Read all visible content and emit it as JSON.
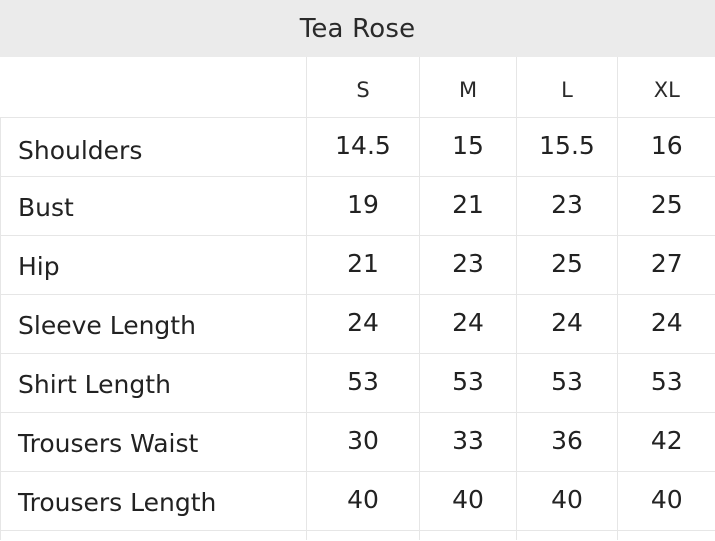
{
  "title": "Tea Rose",
  "table": {
    "corner_label": "",
    "columns": [
      "S",
      "M",
      "L",
      "XL"
    ],
    "rows": [
      {
        "label": "Shoulders",
        "values": [
          "14.5",
          "15",
          "15.5",
          "16"
        ]
      },
      {
        "label": "Bust",
        "values": [
          "19",
          "21",
          "23",
          "25"
        ]
      },
      {
        "label": "Hip",
        "values": [
          "21",
          "23",
          "25",
          "27"
        ]
      },
      {
        "label": "Sleeve Length",
        "values": [
          "24",
          "24",
          "24",
          "24"
        ]
      },
      {
        "label": "Shirt Length",
        "values": [
          "53",
          "53",
          "53",
          "53"
        ]
      },
      {
        "label": "Trousers Waist",
        "values": [
          "30",
          "33",
          "36",
          "42"
        ]
      },
      {
        "label": "Trousers Length",
        "values": [
          "40",
          "40",
          "40",
          "40"
        ]
      }
    ]
  },
  "colors": {
    "title_background": "#ebebeb",
    "grid_line": "#e6e6e6",
    "text": "#222222"
  }
}
